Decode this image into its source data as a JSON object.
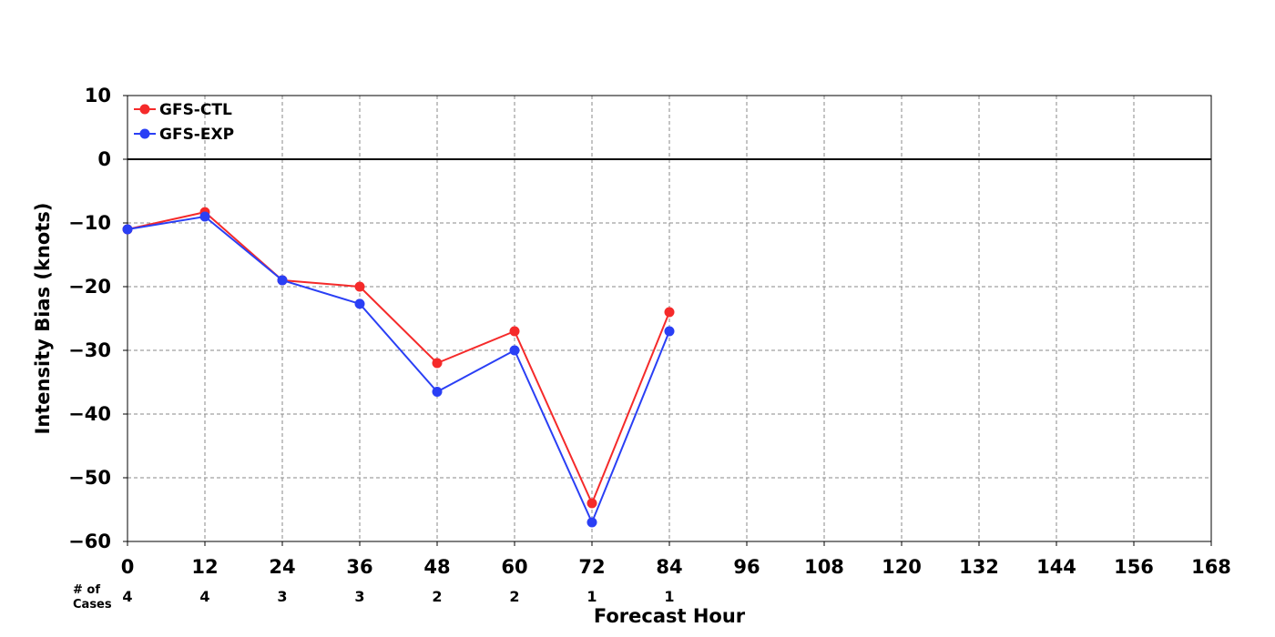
{
  "chart_data": {
    "type": "line",
    "title": "",
    "xlabel": "Forecast Hour",
    "ylabel": "Intensity Bias (knots)",
    "xlim": [
      0,
      168
    ],
    "ylim": [
      -60,
      10
    ],
    "x_ticks": [
      0,
      12,
      24,
      36,
      48,
      60,
      72,
      84,
      96,
      108,
      120,
      132,
      144,
      156,
      168
    ],
    "y_ticks": [
      10,
      0,
      -10,
      -20,
      -30,
      -40,
      -50,
      -60
    ],
    "x_tick_labels": [
      "0",
      "12",
      "24",
      "36",
      "48",
      "60",
      "72",
      "84",
      "96",
      "108",
      "120",
      "132",
      "144",
      "156",
      "168"
    ],
    "y_tick_labels": [
      "10",
      "0",
      "−10",
      "−20",
      "−30",
      "−40",
      "−50",
      "−60"
    ],
    "grid": true,
    "reference_line": 0,
    "legend_position": "top-left",
    "x": [
      0,
      12,
      24,
      36,
      48,
      60,
      72,
      84
    ],
    "series": [
      {
        "name": "GFS-CTL",
        "color": "#f52a2a",
        "values": [
          -11,
          -8.3,
          -19,
          -20,
          -32,
          -27,
          -54,
          -24
        ]
      },
      {
        "name": "GFS-EXP",
        "color": "#2a3ff5",
        "values": [
          -11,
          -9,
          -19,
          -22.7,
          -36.5,
          -30,
          -57,
          -27
        ]
      }
    ],
    "cases": {
      "label_line1": "# of",
      "label_line2": "Cases",
      "x": [
        0,
        12,
        24,
        36,
        48,
        60,
        72,
        84
      ],
      "values": [
        "4",
        "4",
        "3",
        "3",
        "2",
        "2",
        "1",
        "1"
      ]
    }
  }
}
